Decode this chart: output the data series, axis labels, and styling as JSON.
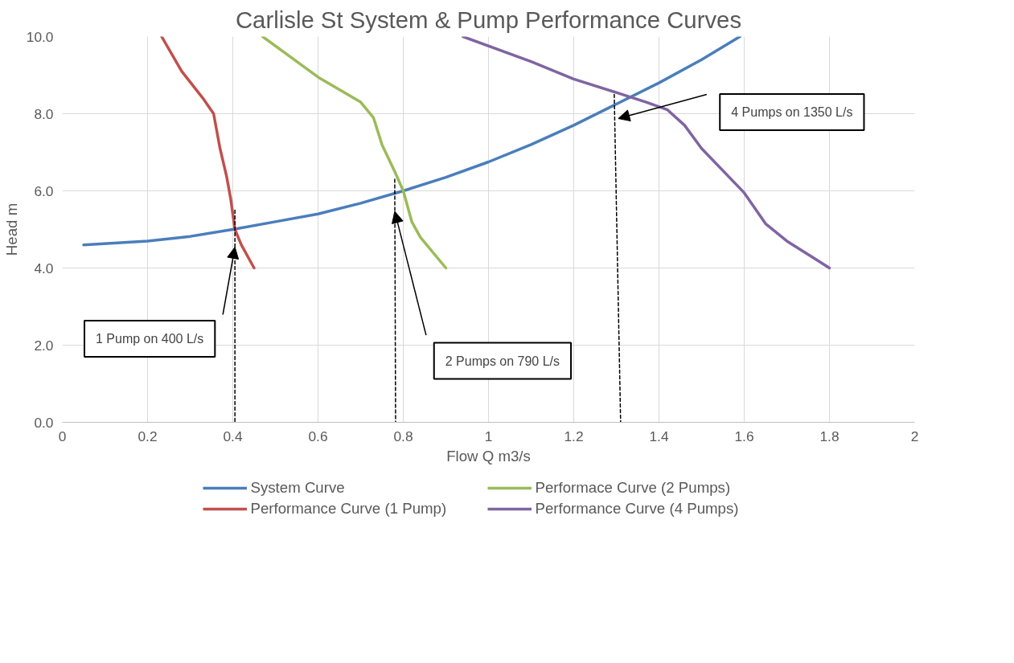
{
  "chart_data": {
    "type": "line",
    "title": "Carlisle St System & Pump Performance Curves",
    "xlabel": "Flow Q m3/s",
    "ylabel": "Head m",
    "xlim": [
      0,
      2
    ],
    "ylim": [
      0,
      10
    ],
    "xticks": [
      0,
      0.2,
      0.4,
      0.6,
      0.8,
      1,
      1.2,
      1.4,
      1.6,
      1.8,
      2
    ],
    "yticks": [
      {
        "value": 0,
        "label": "0.0"
      },
      {
        "value": 2,
        "label": "2.0"
      },
      {
        "value": 4,
        "label": "4.0"
      },
      {
        "value": 6,
        "label": "6.0"
      },
      {
        "value": 8,
        "label": "8.0"
      },
      {
        "value": 10,
        "label": "10.0"
      }
    ],
    "grid": true,
    "legend": "bottom",
    "marker": "none",
    "series": [
      {
        "name": "System Curve",
        "color": "#4a7ebb",
        "x": [
          0.05,
          0.2,
          0.3,
          0.4,
          0.5,
          0.6,
          0.7,
          0.8,
          0.9,
          1.0,
          1.1,
          1.2,
          1.3,
          1.4,
          1.5,
          1.59
        ],
        "values": [
          4.6,
          4.7,
          4.82,
          5.0,
          5.2,
          5.4,
          5.68,
          6.0,
          6.35,
          6.75,
          7.2,
          7.7,
          8.25,
          8.8,
          9.4,
          10.0
        ]
      },
      {
        "name": "Performance Curve (1 Pump)",
        "color": "#c0504d",
        "x": [
          0.233,
          0.28,
          0.33,
          0.355,
          0.37,
          0.385,
          0.395,
          0.405,
          0.42,
          0.45
        ],
        "values": [
          10.0,
          9.1,
          8.4,
          8.0,
          7.1,
          6.4,
          5.8,
          5.0,
          4.6,
          4.0
        ]
      },
      {
        "name": "Performace Curve (2 Pumps)",
        "color": "#9bbb59",
        "x": [
          0.47,
          0.6,
          0.7,
          0.73,
          0.75,
          0.78,
          0.8,
          0.82,
          0.84,
          0.9
        ],
        "values": [
          10.0,
          8.95,
          8.3,
          7.9,
          7.2,
          6.5,
          6.0,
          5.2,
          4.8,
          4.0
        ]
      },
      {
        "name": "Performance Curve (4 Pumps)",
        "color": "#8064a2",
        "x": [
          0.94,
          1.1,
          1.2,
          1.3,
          1.37,
          1.42,
          1.46,
          1.5,
          1.6,
          1.65,
          1.7,
          1.8
        ],
        "values": [
          10.0,
          9.35,
          8.9,
          8.55,
          8.3,
          8.1,
          7.7,
          7.1,
          5.95,
          5.15,
          4.7,
          4.0
        ]
      },
      {
        "color": "#000000",
        "line_style": "dashed",
        "x": [
          0.405,
          0.405
        ],
        "values": [
          5.5,
          0
        ]
      },
      {
        "color": "#000000",
        "line_style": "dashed",
        "x": [
          0.78,
          0.782
        ],
        "values": [
          6.3,
          0
        ]
      },
      {
        "color": "#000000",
        "line_style": "dashed",
        "x": [
          1.295,
          1.31
        ],
        "values": [
          8.5,
          0
        ]
      }
    ],
    "annotations": [
      "1 Pump on 400 L/s",
      "2 Pumps on 790 L/s",
      "4 Pumps on 1350 L/s"
    ]
  }
}
